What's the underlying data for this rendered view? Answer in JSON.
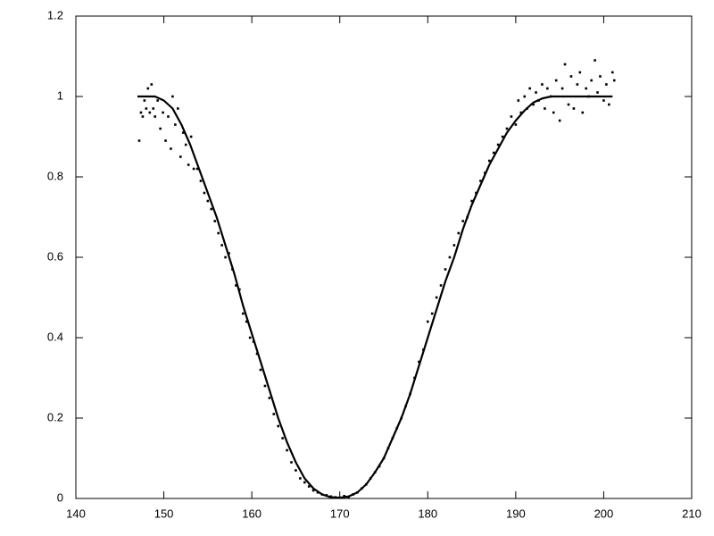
{
  "chart_data": {
    "type": "scatter",
    "xlim": [
      140,
      210
    ],
    "ylim": [
      0,
      1.2
    ],
    "xticks": [
      140,
      150,
      160,
      170,
      180,
      190,
      200,
      210
    ],
    "yticks": [
      0,
      0.2,
      0.4,
      0.6,
      0.8,
      1,
      1.2
    ],
    "grid": false,
    "series": [
      {
        "type": "scatter",
        "color": "#000000",
        "x": [
          147.2,
          147.4,
          147.6,
          147.8,
          148,
          148.2,
          148.4,
          148.6,
          148.8,
          149,
          149.3,
          149.6,
          149.9,
          150.2,
          150.5,
          150.8,
          151,
          151.3,
          151.6,
          151.9,
          152.2,
          152.5,
          152.8,
          153.1,
          153.4,
          153.8,
          154.2,
          154.6,
          155,
          155.4,
          155.8,
          156.2,
          156.6,
          157,
          157.4,
          157.8,
          158.2,
          158.6,
          159,
          159.4,
          159.8,
          160.2,
          160.6,
          161,
          161.5,
          162,
          162.5,
          163,
          163.5,
          164,
          164.5,
          165,
          165.5,
          166,
          166.5,
          167,
          167.5,
          168,
          168.5,
          169,
          169.5,
          170,
          170.5,
          171,
          171.5,
          172,
          172.5,
          173,
          173.5,
          174,
          174.5,
          175,
          175.5,
          176,
          176.5,
          177,
          177.5,
          178,
          178.5,
          179,
          179.5,
          180,
          180.5,
          181,
          181.5,
          182,
          182.5,
          183,
          183.5,
          184,
          184.5,
          185,
          185.5,
          186,
          186.5,
          187,
          187.5,
          188,
          188.5,
          189,
          189.5,
          190,
          190.3,
          190.6,
          191,
          191.3,
          191.6,
          192,
          192.3,
          192.6,
          193,
          193.3,
          193.6,
          194,
          194.3,
          194.6,
          195,
          195.3,
          195.6,
          196,
          196.3,
          196.6,
          197,
          197.3,
          197.6,
          198,
          198.3,
          198.6,
          199,
          199.3,
          199.6,
          200,
          200.3,
          200.6,
          201,
          201.2
        ],
        "values": [
          0.89,
          0.96,
          0.95,
          0.99,
          0.97,
          1.02,
          0.96,
          1.03,
          0.97,
          0.95,
          0.99,
          0.92,
          0.96,
          0.89,
          0.95,
          0.87,
          1.0,
          0.93,
          0.97,
          0.85,
          0.91,
          0.88,
          0.83,
          0.9,
          0.82,
          0.82,
          0.79,
          0.76,
          0.74,
          0.72,
          0.69,
          0.66,
          0.63,
          0.6,
          0.61,
          0.57,
          0.53,
          0.52,
          0.46,
          0.44,
          0.4,
          0.39,
          0.36,
          0.32,
          0.28,
          0.25,
          0.21,
          0.18,
          0.15,
          0.12,
          0.09,
          0.07,
          0.05,
          0.04,
          0.03,
          0.02,
          0.015,
          0.01,
          0.008,
          0.005,
          0.003,
          0.002,
          0.006,
          0.004,
          0.01,
          0.015,
          0.025,
          0.035,
          0.05,
          0.065,
          0.08,
          0.1,
          0.125,
          0.15,
          0.175,
          0.2,
          0.23,
          0.26,
          0.3,
          0.34,
          0.37,
          0.44,
          0.46,
          0.5,
          0.53,
          0.57,
          0.6,
          0.63,
          0.66,
          0.69,
          0.7,
          0.74,
          0.76,
          0.79,
          0.81,
          0.84,
          0.86,
          0.88,
          0.9,
          0.92,
          0.95,
          0.93,
          0.99,
          0.96,
          1.0,
          0.97,
          1.02,
          0.98,
          1.01,
          0.99,
          1.03,
          0.97,
          1.02,
          1.0,
          0.96,
          1.04,
          0.94,
          1.02,
          1.08,
          0.98,
          1.05,
          0.97,
          1.03,
          1.06,
          0.96,
          1.02,
          1.0,
          1.04,
          1.09,
          1.01,
          1.05,
          0.99,
          1.03,
          0.98,
          1.06,
          1.04
        ]
      },
      {
        "type": "line",
        "color": "#000000",
        "x": [
          147,
          148,
          149,
          150,
          151,
          152,
          153,
          154,
          155,
          156,
          157,
          158,
          159,
          160,
          161,
          162,
          163,
          164,
          165,
          166,
          167,
          168,
          169,
          170,
          171,
          172,
          173,
          174,
          175,
          176,
          177,
          178,
          179,
          180,
          181,
          182,
          183,
          184,
          185,
          186,
          187,
          188,
          189,
          190,
          191,
          192,
          193,
          194,
          195,
          196,
          197,
          198,
          199,
          200,
          201
        ],
        "values": [
          1,
          1,
          1,
          0.99,
          0.97,
          0.93,
          0.88,
          0.82,
          0.76,
          0.7,
          0.63,
          0.56,
          0.48,
          0.41,
          0.34,
          0.27,
          0.2,
          0.14,
          0.09,
          0.05,
          0.025,
          0.01,
          0.003,
          0.002,
          0.005,
          0.015,
          0.035,
          0.065,
          0.1,
          0.15,
          0.2,
          0.26,
          0.33,
          0.4,
          0.47,
          0.54,
          0.6,
          0.67,
          0.73,
          0.78,
          0.83,
          0.87,
          0.91,
          0.94,
          0.965,
          0.985,
          0.995,
          1,
          1,
          1,
          1,
          1,
          1,
          1,
          1
        ]
      }
    ]
  }
}
